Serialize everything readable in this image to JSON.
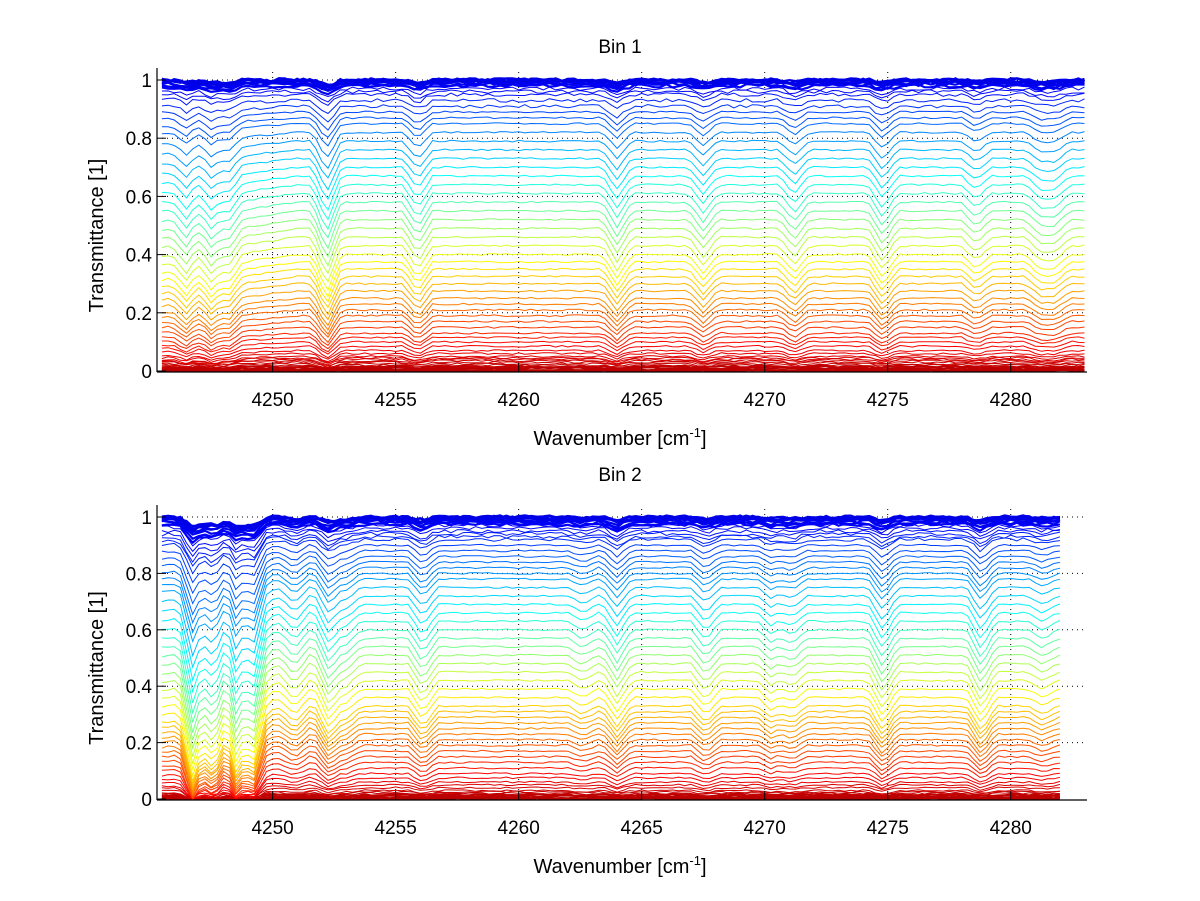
{
  "chart_data": [
    {
      "type": "line",
      "title": "Bin 1",
      "xlabel": "Wavenumber [cm",
      "xlabel_sup": "-1",
      "xlabel_suffix": "]",
      "ylabel": "Transmittance [1]",
      "xlim": [
        4245.3,
        4283.1
      ],
      "ylim": [
        0,
        1.03
      ],
      "xticks": [
        4250,
        4255,
        4260,
        4265,
        4270,
        4275,
        4280
      ],
      "xtick_labels": [
        "4250",
        "4255",
        "4260",
        "4265",
        "4270",
        "4275",
        "4280"
      ],
      "yticks": [
        0,
        0.2,
        0.4,
        0.6,
        0.8,
        1
      ],
      "ytick_labels": [
        "0",
        "0.2",
        "0.4",
        "0.6",
        "0.8",
        "1"
      ],
      "grid": true,
      "colormap": "jet (blue at T≈1 → red at T≈0)",
      "n_series": 60,
      "series_levels": [
        0.0,
        0.005,
        0.01,
        0.015,
        0.02,
        0.025,
        0.03,
        0.035,
        0.04,
        0.045,
        0.05,
        0.06,
        0.07,
        0.085,
        0.1,
        0.115,
        0.13,
        0.15,
        0.17,
        0.19,
        0.21,
        0.23,
        0.25,
        0.275,
        0.3,
        0.325,
        0.35,
        0.375,
        0.4,
        0.43,
        0.46,
        0.49,
        0.52,
        0.55,
        0.58,
        0.61,
        0.64,
        0.67,
        0.7,
        0.73,
        0.76,
        0.79,
        0.82,
        0.85,
        0.87,
        0.89,
        0.91,
        0.93,
        0.95,
        0.96,
        0.97,
        0.98,
        0.985,
        0.99,
        0.993,
        0.996,
        0.998,
        0.999,
        1.0,
        1.0
      ],
      "absorption_lines": [
        {
          "x": 4246.5,
          "depth": 0.04
        },
        {
          "x": 4247.5,
          "depth": 0.05
        },
        {
          "x": 4248.2,
          "depth": 0.04
        },
        {
          "x": 4252.2,
          "depth": 0.08
        },
        {
          "x": 4255.9,
          "depth": 0.05
        },
        {
          "x": 4264.0,
          "depth": 0.05
        },
        {
          "x": 4267.5,
          "depth": 0.04
        },
        {
          "x": 4271.2,
          "depth": 0.04
        },
        {
          "x": 4274.8,
          "depth": 0.05
        },
        {
          "x": 4278.6,
          "depth": 0.03
        },
        {
          "x": 4281.2,
          "depth": 0.03
        },
        {
          "x": 4281.8,
          "depth": 0.03
        }
      ],
      "x_end": 4283.0
    },
    {
      "type": "line",
      "title": "Bin 2",
      "xlabel": "Wavenumber [cm",
      "xlabel_sup": "-1",
      "xlabel_suffix": "]",
      "ylabel": "Transmittance [1]",
      "xlim": [
        4245.3,
        4283.1
      ],
      "ylim": [
        0,
        1.03
      ],
      "xticks": [
        4250,
        4255,
        4260,
        4265,
        4270,
        4275,
        4280
      ],
      "xtick_labels": [
        "4250",
        "4255",
        "4260",
        "4265",
        "4270",
        "4275",
        "4280"
      ],
      "yticks": [
        0,
        0.2,
        0.4,
        0.6,
        0.8,
        1
      ],
      "ytick_labels": [
        "0",
        "0.2",
        "0.4",
        "0.6",
        "0.8",
        "1"
      ],
      "grid": true,
      "colormap": "jet (blue at T≈1 → red at T≈0)",
      "n_series": 60,
      "series_levels": [
        0.0,
        0.005,
        0.01,
        0.015,
        0.02,
        0.025,
        0.03,
        0.04,
        0.05,
        0.06,
        0.075,
        0.09,
        0.11,
        0.13,
        0.15,
        0.17,
        0.19,
        0.21,
        0.23,
        0.25,
        0.27,
        0.29,
        0.31,
        0.33,
        0.36,
        0.39,
        0.42,
        0.45,
        0.48,
        0.51,
        0.54,
        0.57,
        0.6,
        0.63,
        0.66,
        0.69,
        0.72,
        0.75,
        0.78,
        0.8,
        0.82,
        0.84,
        0.86,
        0.88,
        0.9,
        0.92,
        0.93,
        0.94,
        0.95,
        0.96,
        0.97,
        0.975,
        0.98,
        0.985,
        0.99,
        0.993,
        0.996,
        0.998,
        1.0,
        1.0
      ],
      "absorption_lines": [
        {
          "x": 4246.8,
          "depth": 0.16
        },
        {
          "x": 4247.6,
          "depth": 0.14
        },
        {
          "x": 4248.5,
          "depth": 0.14
        },
        {
          "x": 4249.2,
          "depth": 0.14
        },
        {
          "x": 4250.9,
          "depth": 0.04
        },
        {
          "x": 4252.3,
          "depth": 0.07
        },
        {
          "x": 4253.0,
          "depth": 0.03
        },
        {
          "x": 4256.1,
          "depth": 0.05
        },
        {
          "x": 4262.6,
          "depth": 0.02
        },
        {
          "x": 4264.0,
          "depth": 0.05
        },
        {
          "x": 4267.6,
          "depth": 0.04
        },
        {
          "x": 4270.3,
          "depth": 0.03
        },
        {
          "x": 4271.1,
          "depth": 0.03
        },
        {
          "x": 4274.8,
          "depth": 0.06
        },
        {
          "x": 4278.8,
          "depth": 0.06
        },
        {
          "x": 4281.3,
          "depth": 0.02
        }
      ],
      "x_end": 4282.2
    }
  ]
}
